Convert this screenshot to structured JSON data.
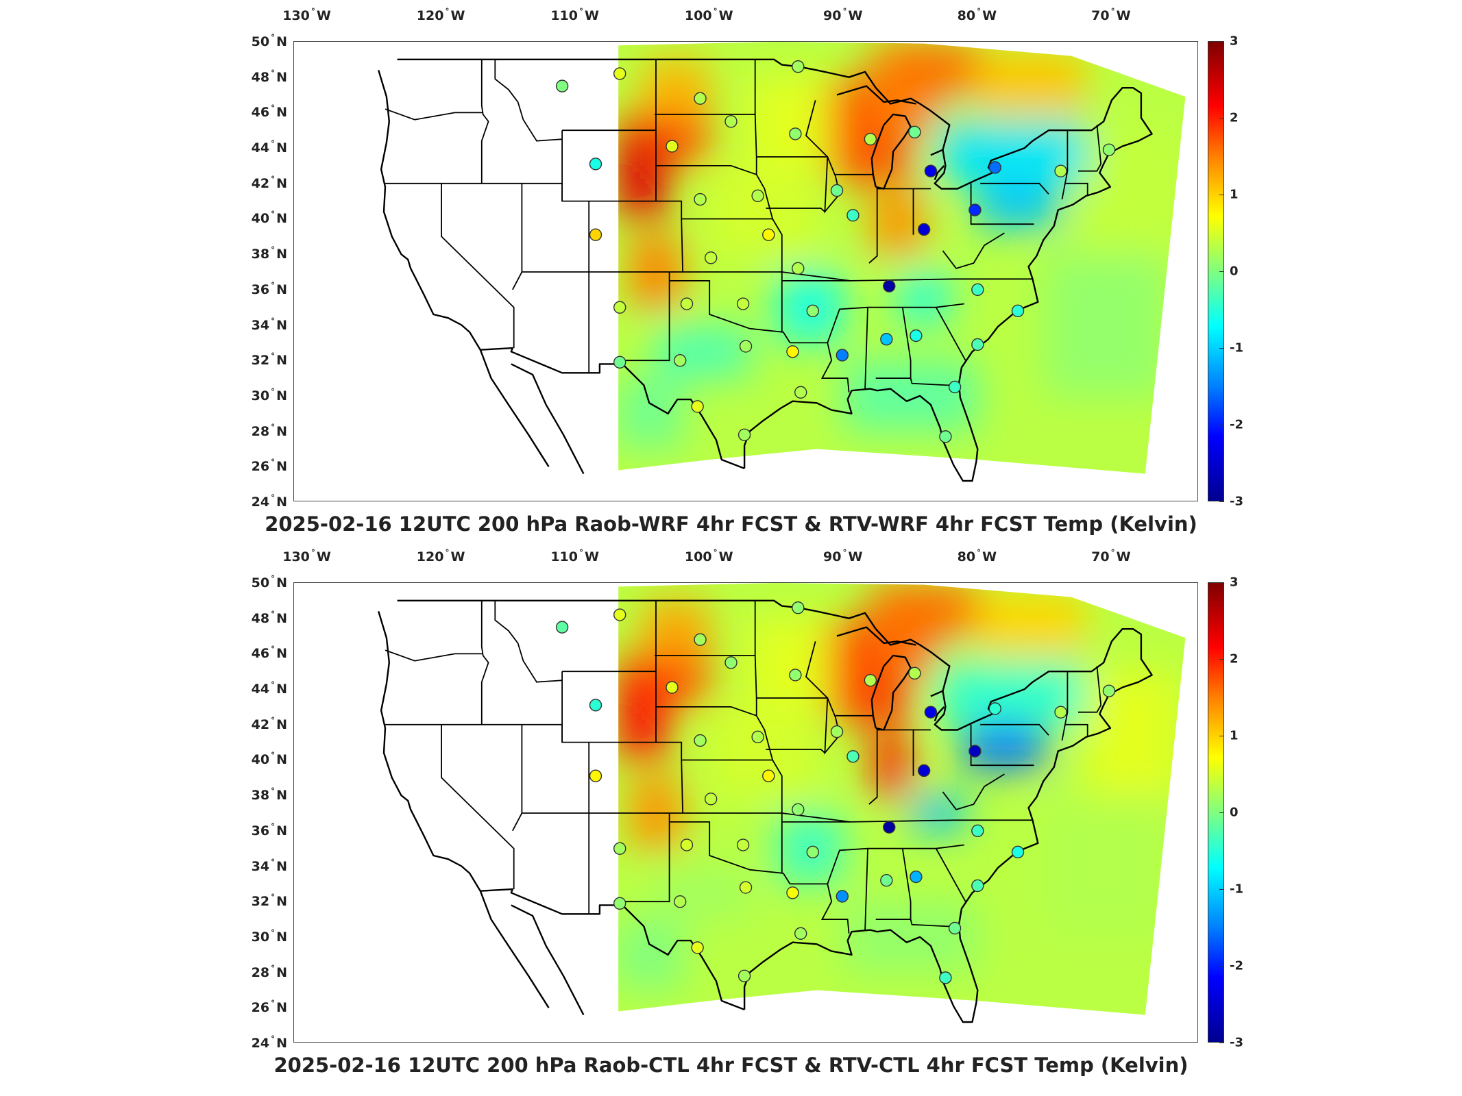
{
  "figure": {
    "panels": [
      {
        "id": "top",
        "title": "2025-02-16 12UTC 200 hPa Raob-WRF 4hr FCST & RTV-WRF 4hr FCST Temp (Kelvin)",
        "lon_ticks": [
          "130",
          "120",
          "110",
          "100",
          "90",
          "80",
          "70"
        ],
        "lon_hemisphere": "W",
        "lat_ticks": [
          "50",
          "48",
          "46",
          "44",
          "42",
          "40",
          "38",
          "36",
          "34",
          "32",
          "30",
          "28",
          "26",
          "24"
        ],
        "lat_hemisphere": "N",
        "colorbar_ticks": [
          "3",
          "2",
          "1",
          "0",
          "-1",
          "-2",
          "-3"
        ]
      },
      {
        "id": "bottom",
        "title": "2025-02-16 12UTC 200 hPa Raob-CTL 4hr FCST & RTV-CTL 4hr FCST Temp (Kelvin)",
        "lon_ticks": [
          "130",
          "120",
          "110",
          "100",
          "90",
          "80",
          "70"
        ],
        "lon_hemisphere": "W",
        "lat_ticks": [
          "50",
          "48",
          "46",
          "44",
          "42",
          "40",
          "38",
          "36",
          "34",
          "32",
          "30",
          "28",
          "26",
          "24"
        ],
        "lat_hemisphere": "N",
        "colorbar_ticks": [
          "3",
          "2",
          "1",
          "0",
          "-1",
          "-2",
          "-3"
        ]
      }
    ],
    "colorbar": {
      "min": -3,
      "max": 3,
      "colormap": "jet"
    },
    "stations": [
      {
        "lon": -111.0,
        "lat": 47.5,
        "top": 0.0,
        "bottom": -0.2
      },
      {
        "lon": -106.7,
        "lat": 48.2,
        "top": 0.6,
        "bottom": 0.6
      },
      {
        "lon": -108.5,
        "lat": 43.1,
        "top": -0.6,
        "bottom": -0.5
      },
      {
        "lon": -108.5,
        "lat": 39.1,
        "top": 1.0,
        "bottom": 0.8
      },
      {
        "lon": -102.8,
        "lat": 44.1,
        "top": 0.6,
        "bottom": 0.6
      },
      {
        "lon": -100.7,
        "lat": 46.8,
        "top": 0.3,
        "bottom": 0.2
      },
      {
        "lon": -98.4,
        "lat": 45.5,
        "top": 0.3,
        "bottom": 0.1
      },
      {
        "lon": -93.4,
        "lat": 48.6,
        "top": 0.2,
        "bottom": 0.1
      },
      {
        "lon": -93.6,
        "lat": 44.8,
        "top": 0.1,
        "bottom": 0.1
      },
      {
        "lon": -100.7,
        "lat": 41.1,
        "top": 0.3,
        "bottom": 0.2
      },
      {
        "lon": -96.4,
        "lat": 41.3,
        "top": 0.3,
        "bottom": 0.3
      },
      {
        "lon": -99.9,
        "lat": 37.8,
        "top": 0.4,
        "bottom": 0.4
      },
      {
        "lon": -95.6,
        "lat": 39.1,
        "top": 0.8,
        "bottom": 0.8
      },
      {
        "lon": -106.7,
        "lat": 35.0,
        "top": 0.4,
        "bottom": 0.2
      },
      {
        "lon": -101.7,
        "lat": 35.2,
        "top": 0.4,
        "bottom": 0.5
      },
      {
        "lon": -97.5,
        "lat": 35.2,
        "top": 0.4,
        "bottom": 0.4
      },
      {
        "lon": -93.4,
        "lat": 37.2,
        "top": 0.3,
        "bottom": 0.1
      },
      {
        "lon": -92.3,
        "lat": 34.8,
        "top": 0.1,
        "bottom": 0.1
      },
      {
        "lon": -106.7,
        "lat": 31.9,
        "top": -0.1,
        "bottom": 0.1
      },
      {
        "lon": -102.2,
        "lat": 32.0,
        "top": 0.2,
        "bottom": 0.3
      },
      {
        "lon": -97.3,
        "lat": 32.8,
        "top": 0.2,
        "bottom": 0.5
      },
      {
        "lon": -93.8,
        "lat": 32.5,
        "top": 0.8,
        "bottom": 0.7
      },
      {
        "lon": -100.9,
        "lat": 29.4,
        "top": 0.6,
        "bottom": 0.6
      },
      {
        "lon": -97.4,
        "lat": 27.8,
        "top": 0.2,
        "bottom": 0.2
      },
      {
        "lon": -93.2,
        "lat": 30.2,
        "top": 0.3,
        "bottom": 0.2
      },
      {
        "lon": -90.1,
        "lat": 32.3,
        "top": -1.5,
        "bottom": -1.4
      },
      {
        "lon": -86.8,
        "lat": 33.2,
        "top": -1.1,
        "bottom": -0.1
      },
      {
        "lon": -84.6,
        "lat": 33.4,
        "top": -0.6,
        "bottom": -1.2
      },
      {
        "lon": -86.6,
        "lat": 36.2,
        "top": -2.8,
        "bottom": -2.8
      },
      {
        "lon": -89.3,
        "lat": 40.2,
        "top": -0.4,
        "bottom": -0.3
      },
      {
        "lon": -90.5,
        "lat": 41.6,
        "top": -0.1,
        "bottom": 0.2
      },
      {
        "lon": -88.0,
        "lat": 44.5,
        "top": 0.3,
        "bottom": 0.3
      },
      {
        "lon": -84.7,
        "lat": 44.9,
        "top": -0.1,
        "bottom": 0.3
      },
      {
        "lon": -83.5,
        "lat": 42.7,
        "top": -2.4,
        "bottom": -2.4
      },
      {
        "lon": -84.0,
        "lat": 39.4,
        "top": -2.5,
        "bottom": -2.5
      },
      {
        "lon": -80.2,
        "lat": 40.5,
        "top": -2.0,
        "bottom": -2.6
      },
      {
        "lon": -78.7,
        "lat": 42.9,
        "top": -1.6,
        "bottom": -0.5
      },
      {
        "lon": -73.8,
        "lat": 42.7,
        "top": 0.3,
        "bottom": 0.3
      },
      {
        "lon": -70.2,
        "lat": 43.9,
        "top": 0.1,
        "bottom": 0.1
      },
      {
        "lon": -80.0,
        "lat": 36.0,
        "top": -0.4,
        "bottom": -0.4
      },
      {
        "lon": -80.0,
        "lat": 32.9,
        "top": -0.3,
        "bottom": -0.3
      },
      {
        "lon": -77.0,
        "lat": 34.8,
        "top": -0.5,
        "bottom": -0.6
      },
      {
        "lon": -81.7,
        "lat": 30.5,
        "top": -0.4,
        "bottom": -0.1
      },
      {
        "lon": -82.4,
        "lat": 27.7,
        "top": -0.1,
        "bottom": -0.4
      }
    ]
  }
}
